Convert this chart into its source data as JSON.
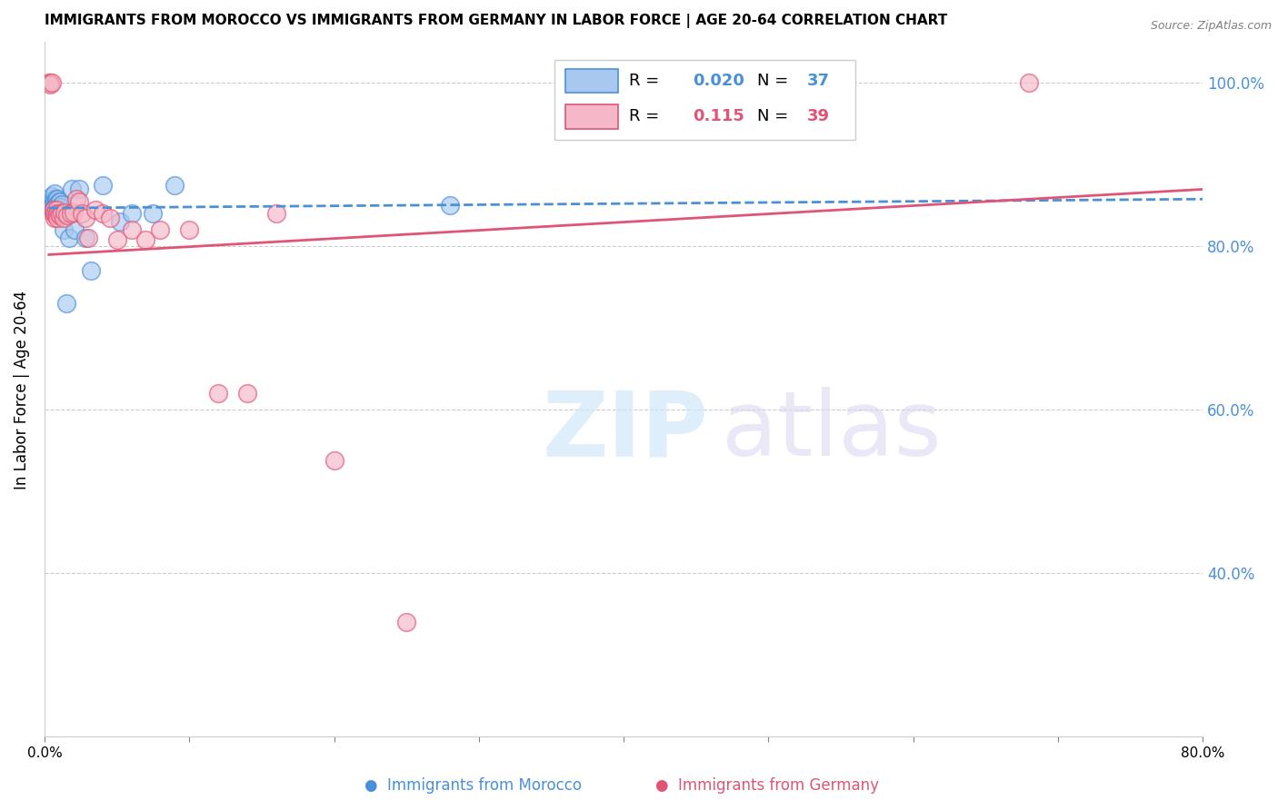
{
  "title": "IMMIGRANTS FROM MOROCCO VS IMMIGRANTS FROM GERMANY IN LABOR FORCE | AGE 20-64 CORRELATION CHART",
  "source": "Source: ZipAtlas.com",
  "ylabel": "In Labor Force | Age 20-64",
  "xlim": [
    0.0,
    0.8
  ],
  "ylim": [
    0.2,
    1.05
  ],
  "yticks": [
    0.4,
    0.6,
    0.8,
    1.0
  ],
  "xticks": [
    0.0,
    0.1,
    0.2,
    0.3,
    0.4,
    0.5,
    0.6,
    0.7,
    0.8
  ],
  "ytick_labels_right": [
    "40.0%",
    "60.0%",
    "80.0%",
    "100.0%"
  ],
  "legend_r_blue": "0.020",
  "legend_n_blue": "37",
  "legend_r_pink": "0.115",
  "legend_n_pink": "39",
  "color_blue": "#a8c8f0",
  "color_pink": "#f5b8c8",
  "color_blue_line": "#4a90d9",
  "color_pink_line": "#e05575",
  "color_right_axis": "#4a90d9",
  "blue_x": [
    0.003,
    0.004,
    0.004,
    0.005,
    0.005,
    0.006,
    0.006,
    0.006,
    0.007,
    0.007,
    0.007,
    0.008,
    0.008,
    0.008,
    0.009,
    0.009,
    0.009,
    0.01,
    0.01,
    0.011,
    0.011,
    0.012,
    0.013,
    0.014,
    0.015,
    0.017,
    0.019,
    0.021,
    0.024,
    0.028,
    0.032,
    0.04,
    0.052,
    0.06,
    0.075,
    0.09,
    0.28
  ],
  "blue_y": [
    0.848,
    0.855,
    0.852,
    0.862,
    0.848,
    0.858,
    0.852,
    0.845,
    0.865,
    0.855,
    0.848,
    0.858,
    0.852,
    0.848,
    0.858,
    0.852,
    0.845,
    0.855,
    0.848,
    0.855,
    0.848,
    0.852,
    0.82,
    0.84,
    0.73,
    0.81,
    0.87,
    0.82,
    0.87,
    0.81,
    0.77,
    0.875,
    0.83,
    0.84,
    0.84,
    0.875,
    0.85
  ],
  "pink_x": [
    0.003,
    0.004,
    0.004,
    0.005,
    0.006,
    0.006,
    0.007,
    0.007,
    0.008,
    0.008,
    0.009,
    0.009,
    0.01,
    0.011,
    0.012,
    0.013,
    0.014,
    0.016,
    0.018,
    0.02,
    0.022,
    0.024,
    0.026,
    0.028,
    0.03,
    0.035,
    0.04,
    0.045,
    0.05,
    0.06,
    0.07,
    0.08,
    0.1,
    0.12,
    0.14,
    0.16,
    0.2,
    0.25,
    0.68
  ],
  "pink_y": [
    1.0,
    1.0,
    0.998,
    1.0,
    0.84,
    0.845,
    0.835,
    0.84,
    0.845,
    0.838,
    0.84,
    0.835,
    0.84,
    0.838,
    0.84,
    0.835,
    0.842,
    0.838,
    0.84,
    0.842,
    0.858,
    0.855,
    0.84,
    0.835,
    0.81,
    0.845,
    0.84,
    0.835,
    0.808,
    0.82,
    0.808,
    0.82,
    0.82,
    0.62,
    0.62,
    0.84,
    0.538,
    0.34,
    1.0
  ],
  "blue_trend_x": [
    0.003,
    0.8
  ],
  "blue_trend_y": [
    0.847,
    0.858
  ],
  "pink_trend_x": [
    0.003,
    0.8
  ],
  "pink_trend_y": [
    0.79,
    0.87
  ]
}
